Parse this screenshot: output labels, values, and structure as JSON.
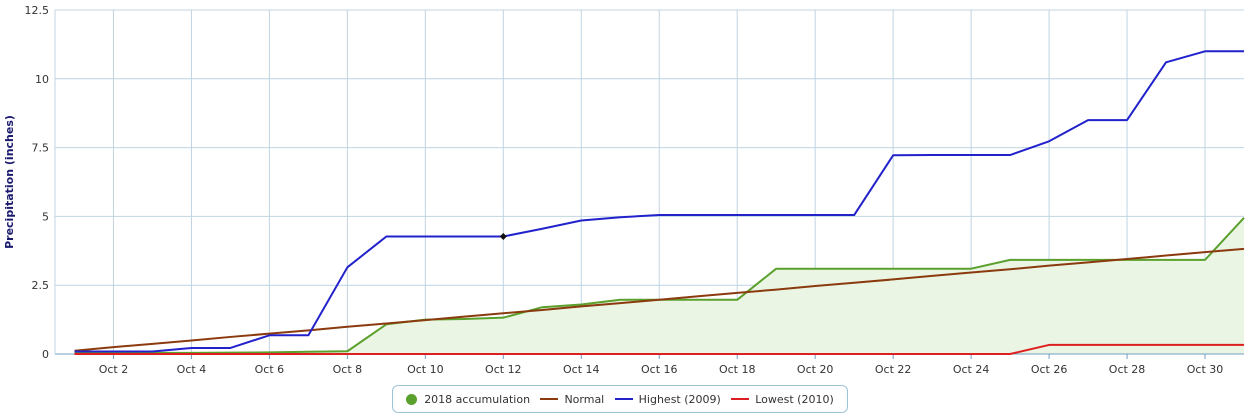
{
  "chart_data": {
    "type": "line",
    "title": "",
    "xlabel": "",
    "ylabel": "Precipitation (inches)",
    "xlim": [
      1,
      31
    ],
    "ylim": [
      0,
      12.5
    ],
    "grid": true,
    "legend_position": "bottom-center",
    "y_ticks": [
      0,
      2.5,
      5,
      7.5,
      10,
      12.5
    ],
    "y_tick_labels": [
      "0",
      "2.5",
      "5",
      "7.5",
      "10",
      "12.5"
    ],
    "x_ticks": [
      2,
      4,
      6,
      8,
      10,
      12,
      14,
      16,
      18,
      20,
      22,
      24,
      26,
      28,
      30
    ],
    "x_tick_labels": [
      "Oct 2",
      "Oct 4",
      "Oct 6",
      "Oct 8",
      "Oct 10",
      "Oct 12",
      "Oct 14",
      "Oct 16",
      "Oct 18",
      "Oct 20",
      "Oct 22",
      "Oct 24",
      "Oct 26",
      "Oct 28",
      "Oct 30"
    ],
    "x": [
      1,
      2,
      3,
      4,
      5,
      6,
      7,
      8,
      9,
      10,
      11,
      12,
      13,
      14,
      15,
      16,
      17,
      18,
      19,
      20,
      21,
      22,
      23,
      24,
      25,
      26,
      27,
      28,
      29,
      30,
      31
    ],
    "series": [
      {
        "name": "2018 accumulation",
        "color": "#5aa02c",
        "fill": "#eaf5e3",
        "values": [
          0.04,
          0.04,
          0.04,
          0.04,
          0.05,
          0.06,
          0.08,
          0.1,
          1.08,
          1.25,
          1.27,
          1.32,
          1.7,
          1.8,
          1.97,
          1.97,
          1.97,
          1.97,
          3.1,
          3.1,
          3.1,
          3.1,
          3.1,
          3.1,
          3.42,
          3.42,
          3.42,
          3.42,
          3.42,
          3.42,
          4.95
        ]
      },
      {
        "name": "Normal",
        "color": "#8b3a0e",
        "values": [
          0.12,
          0.25,
          0.37,
          0.49,
          0.62,
          0.74,
          0.86,
          0.99,
          1.11,
          1.23,
          1.36,
          1.48,
          1.6,
          1.73,
          1.85,
          1.97,
          2.1,
          2.22,
          2.34,
          2.47,
          2.59,
          2.71,
          2.84,
          2.96,
          3.08,
          3.21,
          3.33,
          3.45,
          3.58,
          3.7,
          3.82
        ]
      },
      {
        "name": "Highest (2009)",
        "color": "#2222cc",
        "values": [
          0.09,
          0.09,
          0.09,
          0.22,
          0.22,
          0.68,
          0.68,
          3.15,
          4.27,
          4.27,
          4.27,
          4.27,
          4.55,
          4.85,
          4.97,
          5.05,
          5.05,
          5.05,
          5.05,
          5.05,
          5.05,
          7.22,
          7.23,
          7.23,
          7.23,
          7.73,
          8.5,
          8.5,
          10.6,
          11,
          11
        ]
      },
      {
        "name": "Lowest (2010)",
        "color": "#dd1f1f",
        "values": [
          0,
          0,
          0,
          0,
          0,
          0,
          0,
          0,
          0,
          0,
          0,
          0,
          0,
          0,
          0,
          0,
          0,
          0,
          0,
          0,
          0,
          0,
          0,
          0,
          0,
          0.33,
          0.33,
          0.33,
          0.33,
          0.33,
          0.33
        ]
      }
    ],
    "highlight_marker": {
      "series": "Highest (2009)",
      "x": 12,
      "y": 4.27
    }
  },
  "legend": {
    "items": [
      {
        "label": "2018 accumulation",
        "color": "#5aa02c",
        "symbol": "dot"
      },
      {
        "label": "Normal",
        "color": "#8b3a0e",
        "symbol": "line"
      },
      {
        "label": "Highest (2009)",
        "color": "#2222cc",
        "symbol": "line"
      },
      {
        "label": "Lowest (2010)",
        "color": "#dd1f1f",
        "symbol": "line"
      }
    ]
  }
}
